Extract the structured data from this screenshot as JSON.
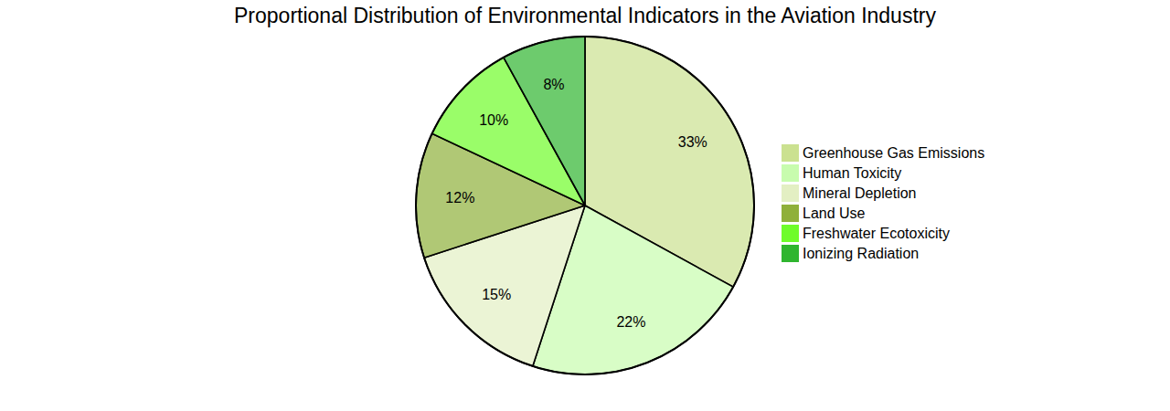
{
  "chart_data": {
    "type": "pie",
    "title": "Proportional Distribution of Environmental Indicators in the Aviation Industry",
    "categories": [
      "Greenhouse Gas Emissions",
      "Human Toxicity",
      "Mineral Depletion",
      "Land Use",
      "Freshwater Ecotoxicity",
      "Ionizing Radiation"
    ],
    "values": [
      33,
      22,
      15,
      12,
      10,
      8
    ],
    "value_labels": [
      "33%",
      "22%",
      "15%",
      "12%",
      "10%",
      "8%"
    ],
    "colors": [
      "#cbe190",
      "#c8fcae",
      "#e3efc3",
      "#8fb03a",
      "#6ffc2a",
      "#2fb52f"
    ],
    "data_labels": true,
    "legend": "right"
  }
}
